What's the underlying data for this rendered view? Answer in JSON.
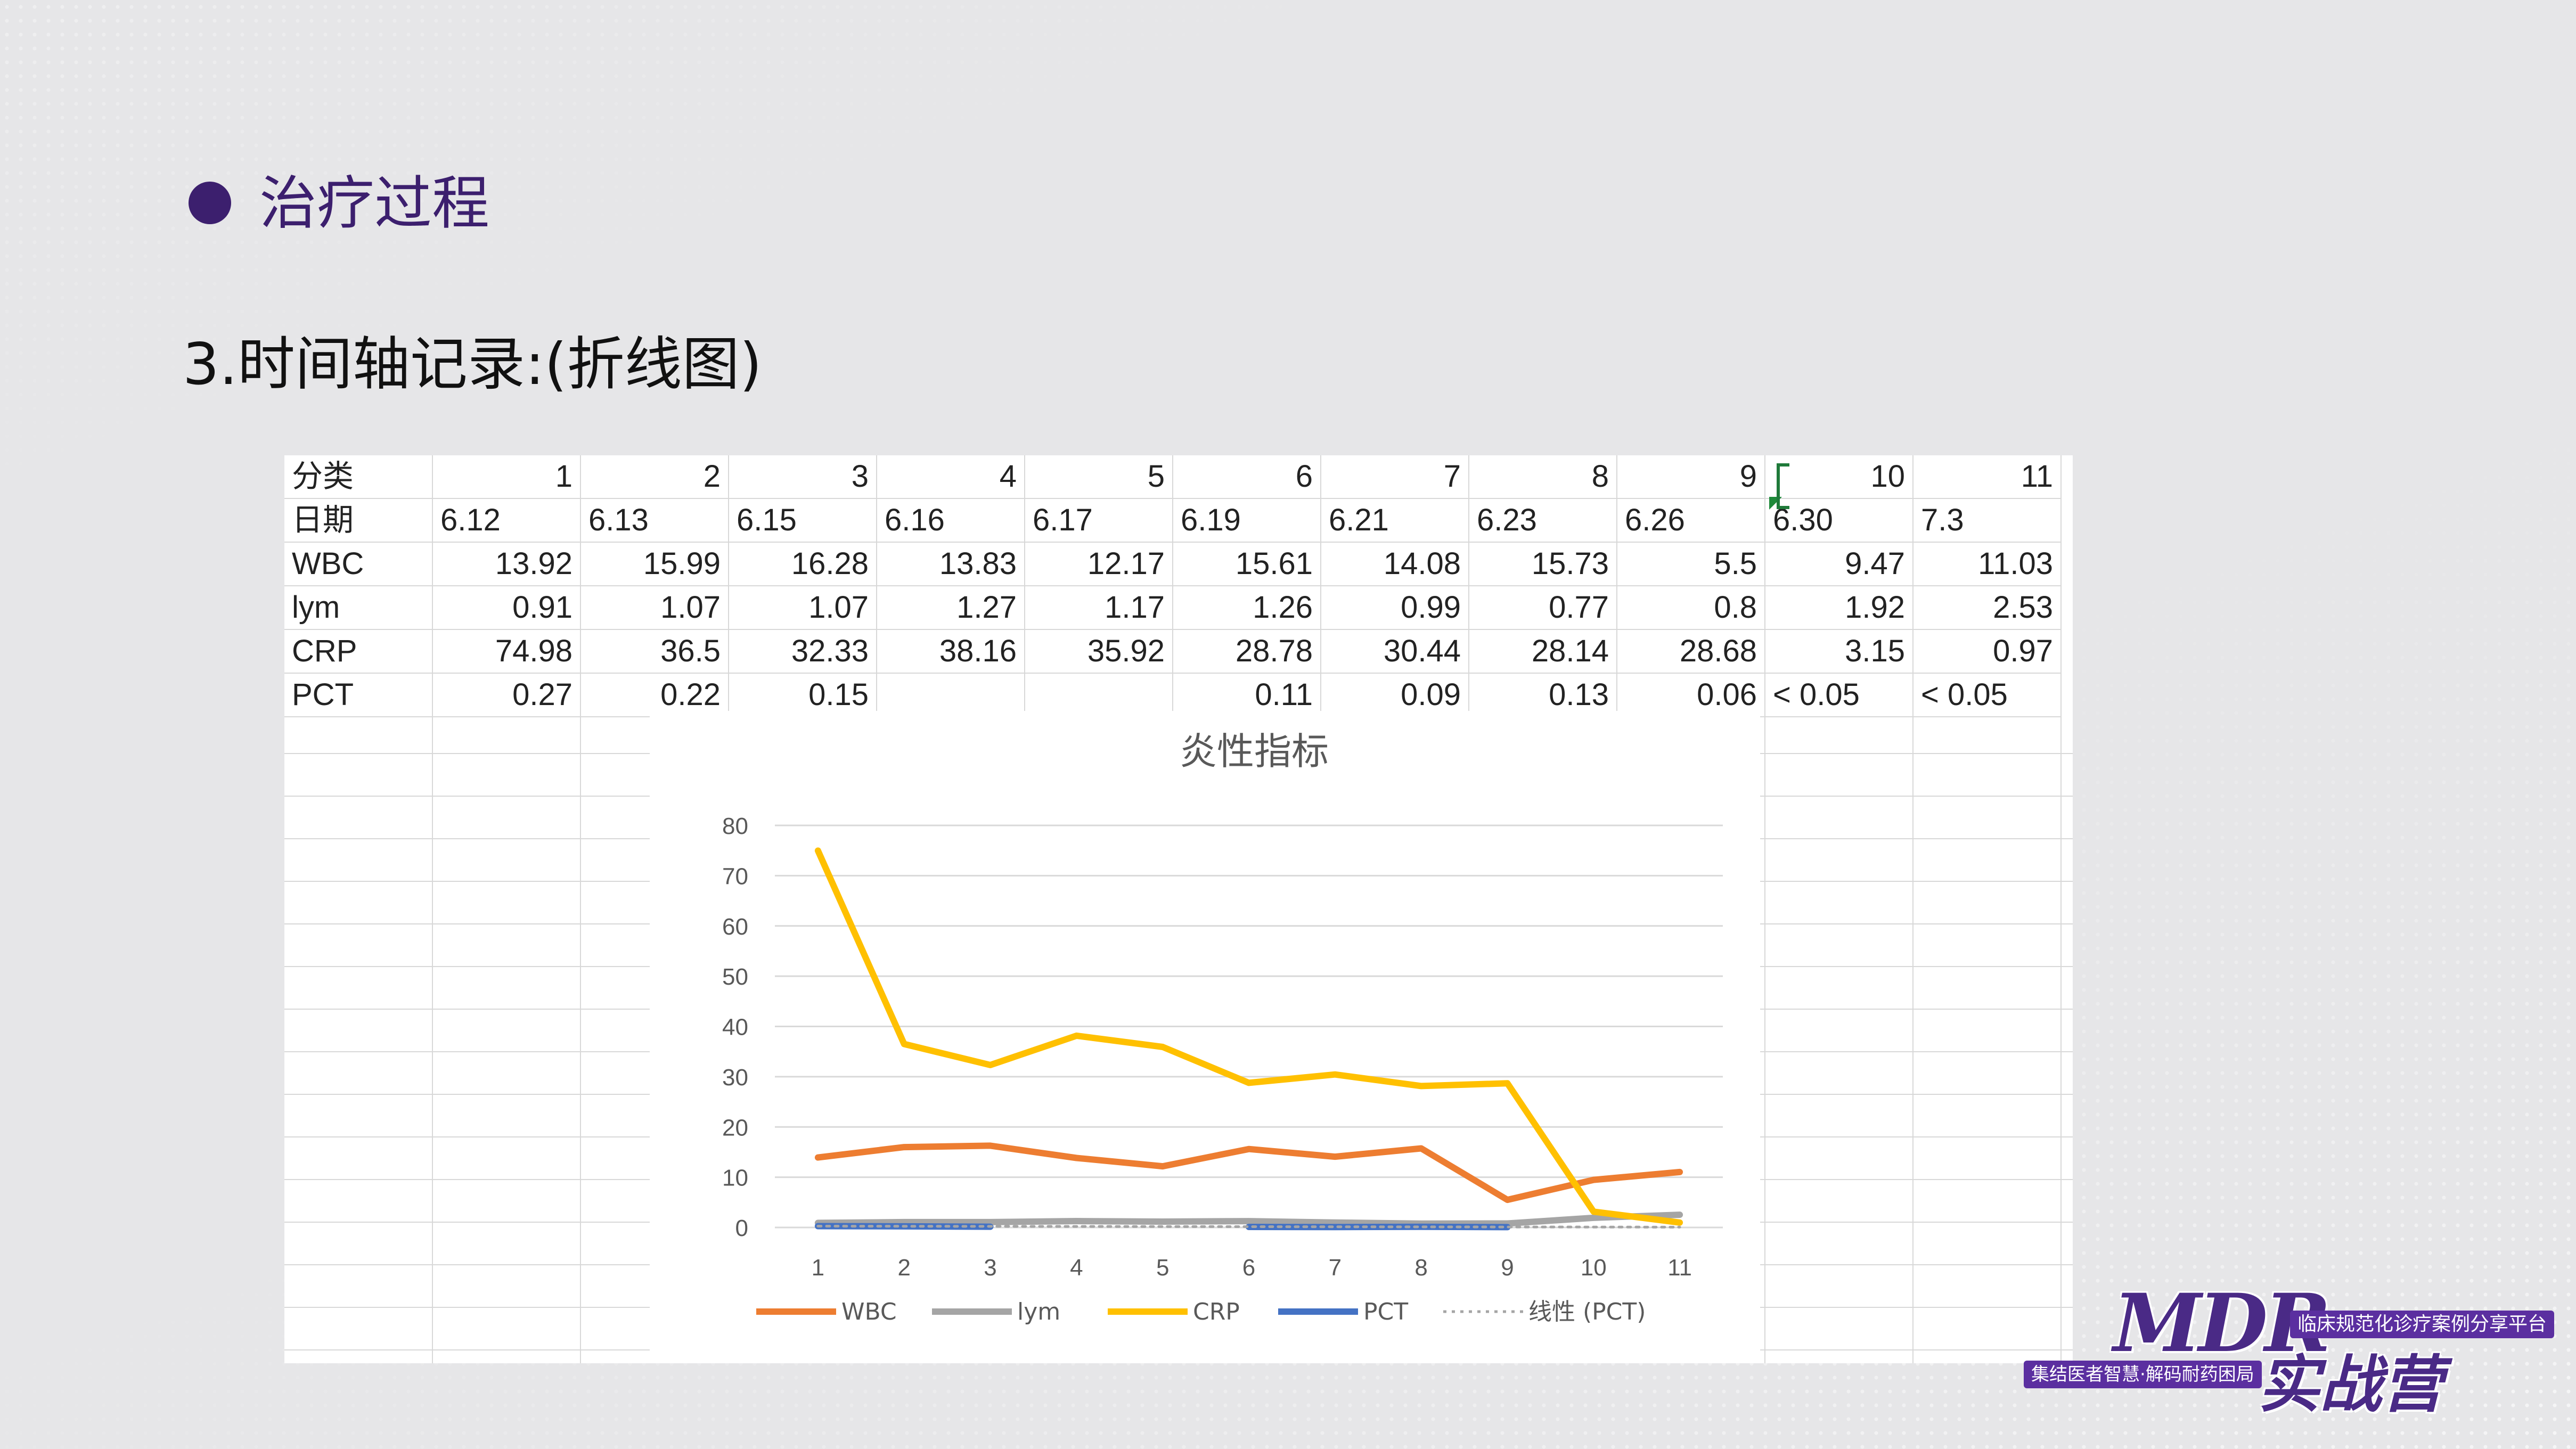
{
  "slide": {
    "section_title": "治疗过程",
    "subtitle": "3.时间轴记录:(折线图)"
  },
  "table": {
    "rows": [
      [
        "分类",
        "1",
        "2",
        "3",
        "4",
        "5",
        "6",
        "7",
        "8",
        "9",
        "10",
        "11"
      ],
      [
        "日期",
        "6.12",
        "6.13",
        "6.15",
        "6.16",
        "6.17",
        "6.19",
        "6.21",
        "6.23",
        "6.26",
        "6.30",
        "7.3"
      ],
      [
        "WBC",
        "13.92",
        "15.99",
        "16.28",
        "13.83",
        "12.17",
        "15.61",
        "14.08",
        "15.73",
        "5.5",
        "9.47",
        "11.03"
      ],
      [
        "lym",
        "0.91",
        "1.07",
        "1.07",
        "1.27",
        "1.17",
        "1.26",
        "0.99",
        "0.77",
        "0.8",
        "1.92",
        "2.53"
      ],
      [
        "CRP",
        "74.98",
        "36.5",
        "32.33",
        "38.16",
        "35.92",
        "28.78",
        "30.44",
        "28.14",
        "28.68",
        "3.15",
        "0.97"
      ],
      [
        "PCT",
        "0.27",
        "0.22",
        "0.15",
        "",
        "",
        "0.11",
        "0.09",
        "0.13",
        "0.06",
        "< 0.05",
        "< 0.05"
      ]
    ]
  },
  "chart_data": {
    "type": "line",
    "title": "炎性指标",
    "x": [
      1,
      2,
      3,
      4,
      5,
      6,
      7,
      8,
      9,
      10,
      11
    ],
    "ylim": [
      0,
      80
    ],
    "yticks": [
      0,
      10,
      20,
      30,
      40,
      50,
      60,
      70,
      80
    ],
    "grid": true,
    "legend_position": "bottom",
    "series": [
      {
        "name": "WBC",
        "color": "#ed7d31",
        "values": [
          13.92,
          15.99,
          16.28,
          13.83,
          12.17,
          15.61,
          14.08,
          15.73,
          5.5,
          9.47,
          11.03
        ]
      },
      {
        "name": "lym",
        "color": "#a5a5a5",
        "values": [
          0.91,
          1.07,
          1.07,
          1.27,
          1.17,
          1.26,
          0.99,
          0.77,
          0.8,
          1.92,
          2.53
        ]
      },
      {
        "name": "CRP",
        "color": "#ffc000",
        "values": [
          74.98,
          36.5,
          32.33,
          38.16,
          35.92,
          28.78,
          30.44,
          28.14,
          28.68,
          3.15,
          0.97
        ]
      },
      {
        "name": "PCT",
        "color": "#4472c4",
        "values": [
          0.27,
          0.22,
          0.15,
          null,
          null,
          0.11,
          0.09,
          0.13,
          0.06,
          null,
          null
        ]
      },
      {
        "name": "线性 (PCT)",
        "color": "#a5a5a5",
        "style": "dotted",
        "values": [
          0.26,
          0.24,
          0.22,
          0.2,
          0.18,
          0.16,
          0.14,
          0.12,
          0.1,
          0.08,
          0.06
        ]
      }
    ]
  },
  "logo": {
    "brand": "MDR",
    "tagline": "临床规范化诊疗案例分享平台",
    "slogan": "集结医者智慧·解码耐药困局",
    "camp": "实战营"
  }
}
